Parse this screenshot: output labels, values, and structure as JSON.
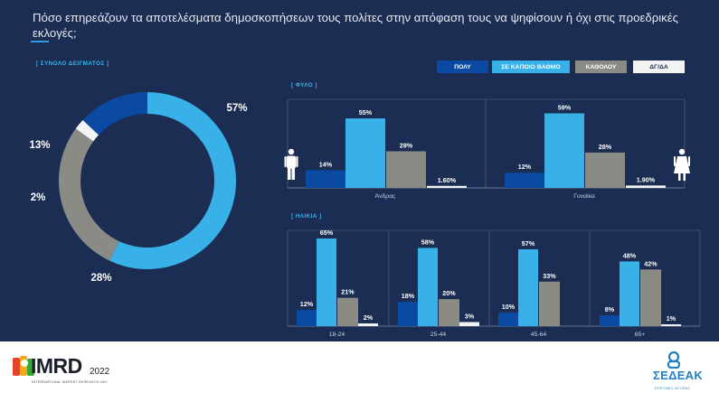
{
  "title": "Πόσο επηρεάζουν τα αποτελέσματα δημοσκοπήσεων τους πολίτες στην απόφαση τους να ψηφίσουν ή όχι στις προεδρικές εκλογές;",
  "colors": {
    "poly": "#0b4aa2",
    "kapoio": "#38b0e8",
    "katholou": "#8b8b86",
    "dgda": "#f2f4f4"
  },
  "legend": [
    {
      "label": "ΠΟΛΥ",
      "key": "poly"
    },
    {
      "label": "ΣΕ ΚΑΠΟΙΟ ΒΑΘΜΟ",
      "key": "kapoio"
    },
    {
      "label": "ΚΑΘΟΛΟΥ",
      "key": "katholou"
    },
    {
      "label": "ΔΓ/ΔΑ",
      "key": "dgda"
    }
  ],
  "chart_data": [
    {
      "type": "pie",
      "title": "[ ΣΥΝΟΛΟ ΔΕΙΓΜΑΤΟΣ ]",
      "categories": [
        "ΠΟΛΥ",
        "ΣΕ ΚΑΠΟΙΟ ΒΑΘΜΟ",
        "ΚΑΘΟΛΟΥ",
        "ΔΓ/ΔΑ"
      ],
      "values": [
        13,
        57,
        28,
        2
      ],
      "labels": [
        "13%",
        "57%",
        "28%",
        "2%"
      ]
    },
    {
      "type": "bar",
      "title": "[ ΦΥΛΟ ]",
      "categories": [
        "Άνδρας",
        "Γυναίκα"
      ],
      "ylim": [
        0,
        60
      ],
      "series": [
        {
          "name": "ΠΟΛΥ",
          "key": "poly",
          "values": [
            14,
            12
          ],
          "labels": [
            "14%",
            "12%"
          ]
        },
        {
          "name": "ΣΕ ΚΑΠΟΙΟ ΒΑΘΜΟ",
          "key": "kapoio",
          "values": [
            55,
            59
          ],
          "labels": [
            "55%",
            "59%"
          ]
        },
        {
          "name": "ΚΑΘΟΛΟΥ",
          "key": "katholou",
          "values": [
            29,
            28
          ],
          "labels": [
            "29%",
            "28%"
          ]
        },
        {
          "name": "ΔΓ/ΔΑ",
          "key": "dgda",
          "values": [
            1.6,
            1.9
          ],
          "labels": [
            "1.60%",
            "1.90%"
          ]
        }
      ]
    },
    {
      "type": "bar",
      "title": "[ ΗΛΙΚΙΑ ]",
      "categories": [
        "18-24",
        "25-44",
        "45-64",
        "65+"
      ],
      "ylim": [
        0,
        67
      ],
      "series": [
        {
          "name": "ΠΟΛΥ",
          "key": "poly",
          "values": [
            12,
            18,
            10,
            8
          ],
          "labels": [
            "12%",
            "18%",
            "10%",
            "8%"
          ]
        },
        {
          "name": "ΣΕ ΚΑΠΟΙΟ ΒΑΘΜΟ",
          "key": "kapoio",
          "values": [
            65,
            58,
            57,
            48
          ],
          "labels": [
            "65%",
            "58%",
            "57%",
            "48%"
          ]
        },
        {
          "name": "ΚΑΘΟΛΟΥ",
          "key": "katholou",
          "values": [
            21,
            20,
            33,
            42
          ],
          "labels": [
            "21%",
            "20%",
            "33%",
            "42%"
          ]
        },
        {
          "name": "ΔΓ/ΔΑ",
          "key": "dgda",
          "values": [
            2,
            3,
            0,
            1
          ],
          "labels": [
            "2%",
            "3%",
            "",
            "1%"
          ]
        }
      ]
    }
  ],
  "footer": {
    "imrd_logo": "IMRD",
    "imrd_year": "2022",
    "imrd_subtitle": "INTERNATIONAL MARKET RESEARCH DAY",
    "sedeak_logo": "ΣΕΔΕΑΚ",
    "sedeak_subtitle": "ΕΡΕΥΝΕΣ ΑΓΟΡΑΣ"
  }
}
